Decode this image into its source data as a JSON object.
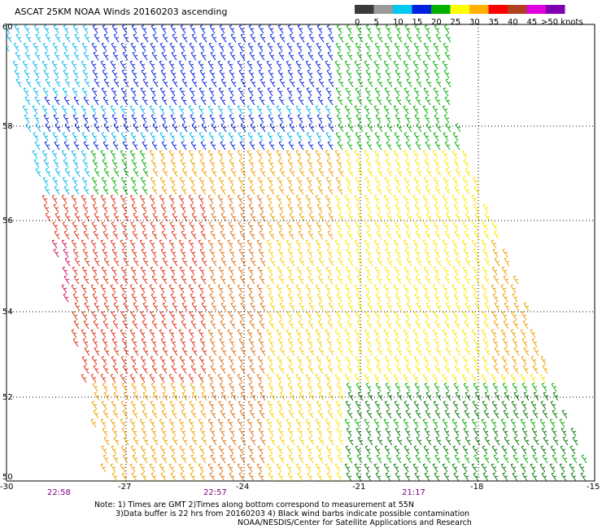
{
  "title": "ASCAT 25KM NOAA Winds 20160203 ascending",
  "legend": {
    "labels": [
      "0",
      "5",
      "10",
      "15",
      "20",
      "25",
      "30",
      "35",
      "40",
      "45",
      ">50 knots"
    ],
    "colors": [
      "#3a3a3a",
      "#9a9a9a",
      "#00c8f0",
      "#0020e0",
      "#00b000",
      "#ffff00",
      "#ffb000",
      "#ff0000",
      "#b04020",
      "#e000e0",
      "#8000b0"
    ]
  },
  "lat_labels": [
    "60",
    "58",
    "56",
    "54",
    "52",
    "50"
  ],
  "lon_labels": [
    "-30",
    "-27",
    "-24",
    "-21",
    "-18",
    "-15"
  ],
  "time_labels": [
    "22:58",
    "22:57",
    "21:17"
  ],
  "notes": [
    "Note: 1) Times are GMT 2)Times along bottom correspond to measurement at 55N",
    "3)Data buffer is 22 hrs from 20160203 4) Black wind barbs indicate possible contamination",
    "NOAA/NESDIS/Center for Satellite Applications and Research"
  ]
}
